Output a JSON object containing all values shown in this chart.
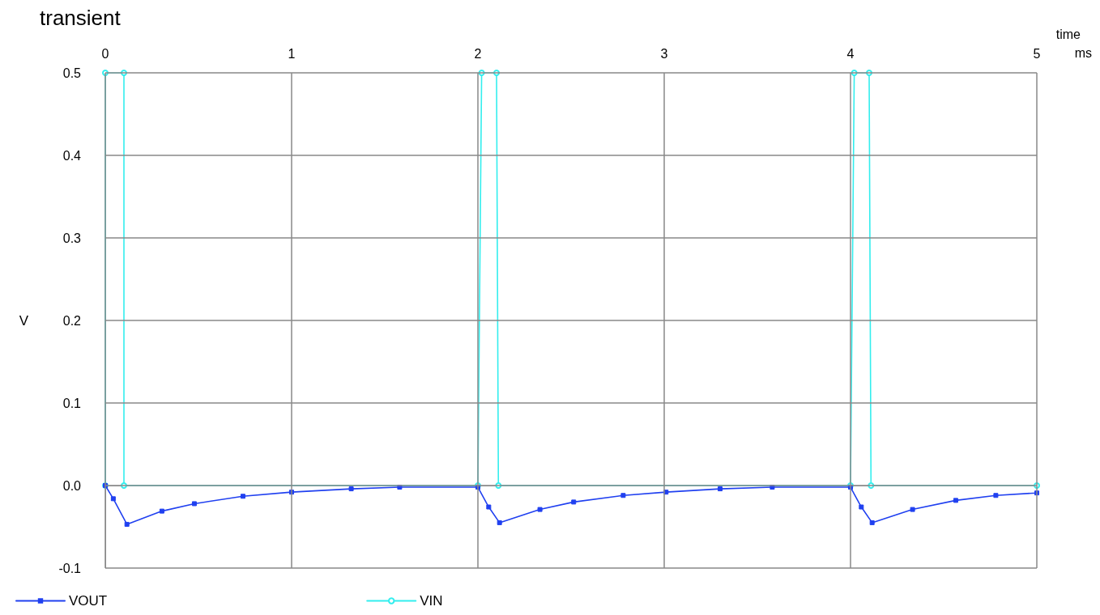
{
  "chart_data": {
    "type": "line",
    "title": "transient",
    "xlabel": "time",
    "ylabel": "V",
    "annotations": [
      "ms"
    ],
    "xlim": [
      0,
      5
    ],
    "xticks": [
      0,
      1,
      2,
      3,
      4,
      5
    ],
    "ylim": [
      -0.1,
      0.5
    ],
    "yticks": [
      {
        "value": -0.1,
        "label": "-0.1"
      },
      {
        "value": 0,
        "label": "0.0"
      },
      {
        "value": 0.1,
        "label": "0.1"
      },
      {
        "value": 0.2,
        "label": "0.2"
      },
      {
        "value": 0.3,
        "label": "0.3"
      },
      {
        "value": 0.4,
        "label": "0.4"
      },
      {
        "value": 0.5,
        "label": "0.5"
      }
    ],
    "grid": true,
    "legend": "bottom",
    "line_style": "solid",
    "series": [
      {
        "name": "VOUT",
        "color": "#2040f0",
        "marker": "square",
        "x": [
          0,
          0.043,
          0.116,
          0.304,
          0.478,
          0.739,
          1.0,
          1.32,
          1.58,
          2.0,
          2.058,
          2.116,
          2.333,
          2.514,
          2.78,
          3.01,
          3.3,
          3.58,
          4.0,
          4.058,
          4.116,
          4.333,
          4.565,
          4.78,
          5.0
        ],
        "values": [
          0,
          -0.016,
          -0.047,
          -0.031,
          -0.022,
          -0.013,
          -0.008,
          -0.004,
          -0.002,
          -0.002,
          -0.026,
          -0.045,
          -0.029,
          -0.02,
          -0.012,
          -0.008,
          -0.004,
          -0.002,
          -0.002,
          -0.026,
          -0.045,
          -0.029,
          -0.018,
          -0.012,
          -0.009
        ]
      },
      {
        "name": "VIN",
        "color": "#33eeee",
        "marker": "circle",
        "x": [
          0,
          0,
          0.1,
          0.1,
          2.0,
          2.02,
          2.1,
          2.11,
          4.0,
          4.02,
          4.1,
          4.11,
          5.0
        ],
        "values": [
          0,
          0.5,
          0.5,
          0,
          0,
          0.5,
          0.5,
          0,
          0,
          0.5,
          0.5,
          0,
          0
        ]
      }
    ]
  }
}
